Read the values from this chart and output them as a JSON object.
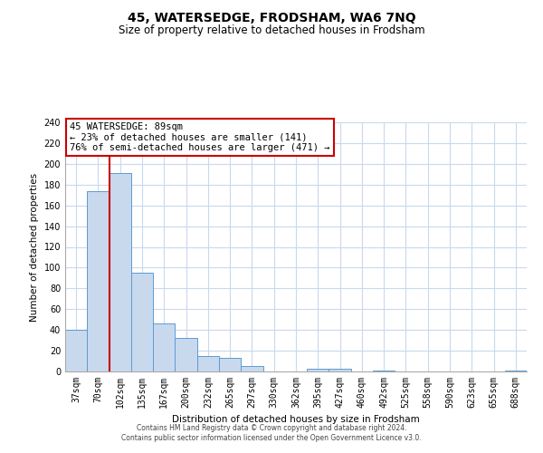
{
  "title": "45, WATERSEDGE, FRODSHAM, WA6 7NQ",
  "subtitle": "Size of property relative to detached houses in Frodsham",
  "xlabel": "Distribution of detached houses by size in Frodsham",
  "ylabel": "Number of detached properties",
  "bin_labels": [
    "37sqm",
    "70sqm",
    "102sqm",
    "135sqm",
    "167sqm",
    "200sqm",
    "232sqm",
    "265sqm",
    "297sqm",
    "330sqm",
    "362sqm",
    "395sqm",
    "427sqm",
    "460sqm",
    "492sqm",
    "525sqm",
    "558sqm",
    "590sqm",
    "623sqm",
    "655sqm",
    "688sqm"
  ],
  "bar_heights": [
    40,
    174,
    191,
    95,
    46,
    32,
    15,
    13,
    5,
    0,
    0,
    3,
    3,
    0,
    1,
    0,
    0,
    0,
    0,
    0,
    1
  ],
  "bar_color": "#c8d9ed",
  "bar_edge_color": "#5b9bd5",
  "vline_x_index": 2,
  "vline_color": "#cc0000",
  "annotation_title": "45 WATERSEDGE: 89sqm",
  "annotation_line1": "← 23% of detached houses are smaller (141)",
  "annotation_line2": "76% of semi-detached houses are larger (471) →",
  "annotation_box_color": "#ffffff",
  "annotation_box_edge": "#cc0000",
  "ylim": [
    0,
    240
  ],
  "yticks": [
    0,
    20,
    40,
    60,
    80,
    100,
    120,
    140,
    160,
    180,
    200,
    220,
    240
  ],
  "footer_line1": "Contains HM Land Registry data © Crown copyright and database right 2024.",
  "footer_line2": "Contains public sector information licensed under the Open Government Licence v3.0.",
  "bg_color": "#ffffff",
  "grid_color": "#c8d9ed",
  "title_fontsize": 10,
  "subtitle_fontsize": 8.5,
  "axis_label_fontsize": 7.5,
  "tick_fontsize": 7,
  "annotation_fontsize": 7.5
}
